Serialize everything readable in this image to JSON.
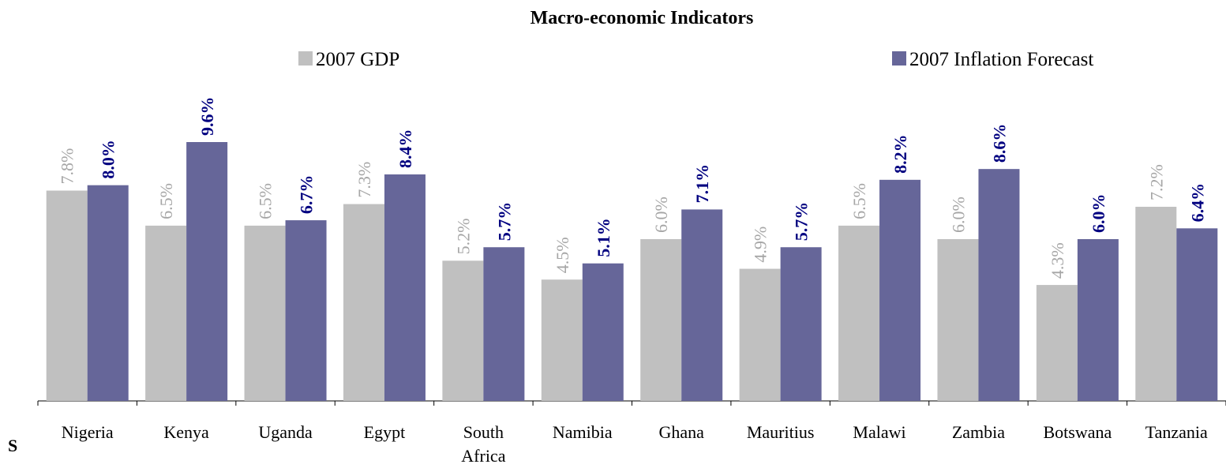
{
  "chart_data": {
    "type": "bar",
    "title": "Macro-economic Indicators",
    "categories": [
      "Nigeria",
      "Kenya",
      "Uganda",
      "Egypt",
      "South Africa",
      "Namibia",
      "Ghana",
      "Mauritius",
      "Malawi",
      "Zambia",
      "Botswana",
      "Tanzania"
    ],
    "series": [
      {
        "name": "2007 GDP",
        "color": "#c0c0c0",
        "label_color": "#a6a6a6",
        "values": [
          7.8,
          6.5,
          6.5,
          7.3,
          5.2,
          4.5,
          6.0,
          4.9,
          6.5,
          6.0,
          4.3,
          7.2
        ],
        "value_labels": [
          "7.8%",
          "6.5%",
          "6.5%",
          "7.3%",
          "5.2%",
          "4.5%",
          "6.0%",
          "4.9%",
          "6.5%",
          "6.0%",
          "4.3%",
          "7.2%"
        ]
      },
      {
        "name": "2007 Inflation Forecast",
        "color": "#666699",
        "label_color": "#000080",
        "values": [
          8.0,
          9.6,
          6.7,
          8.4,
          5.7,
          5.1,
          7.1,
          5.7,
          8.2,
          8.6,
          6.0,
          6.4
        ],
        "value_labels": [
          "8.0%",
          "9.6%",
          "6.7%",
          "8.4%",
          "5.7%",
          "5.1%",
          "7.1%",
          "5.7%",
          "8.2%",
          "8.6%",
          "6.0%",
          "6.4%"
        ]
      }
    ],
    "ylim": [
      0,
      12
    ],
    "annotation": "S"
  }
}
